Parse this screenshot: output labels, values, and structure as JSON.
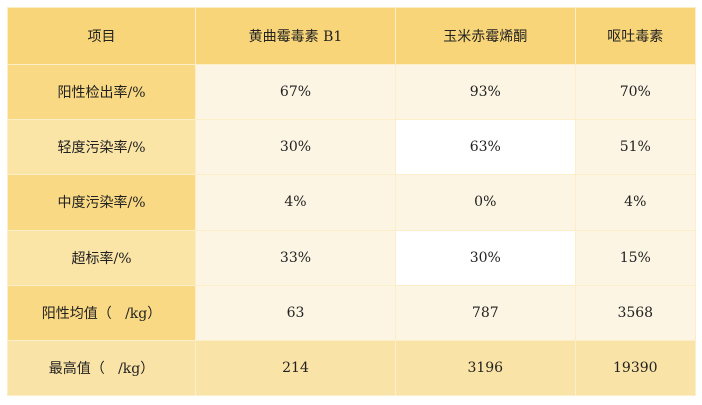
{
  "table": {
    "headers": [
      "项目",
      "黄曲霉毒素 B1",
      "玉米赤霉烯酮",
      "呕吐毒素"
    ],
    "rows": [
      {
        "label": "阳性检出率/%",
        "values": [
          "67%",
          "93%",
          "70%"
        ]
      },
      {
        "label": "轻度污染率/%",
        "values": [
          "30%",
          "63%",
          "51%"
        ]
      },
      {
        "label": "中度污染率/%",
        "values": [
          "4%",
          "0%",
          "4%"
        ]
      },
      {
        "label": "超标率/%",
        "values": [
          "33%",
          "30%",
          "15%"
        ]
      },
      {
        "label": "阳性均值（   /kg）",
        "values": [
          "63",
          "787",
          "3568"
        ]
      },
      {
        "label": "最高值（   /kg）",
        "values": [
          "214",
          "3196",
          "19390"
        ]
      }
    ]
  },
  "colors": {
    "header": "#f8d578",
    "label": "#f9d983",
    "cell": "#fcf5e3",
    "last_row": "#fae3a6"
  }
}
